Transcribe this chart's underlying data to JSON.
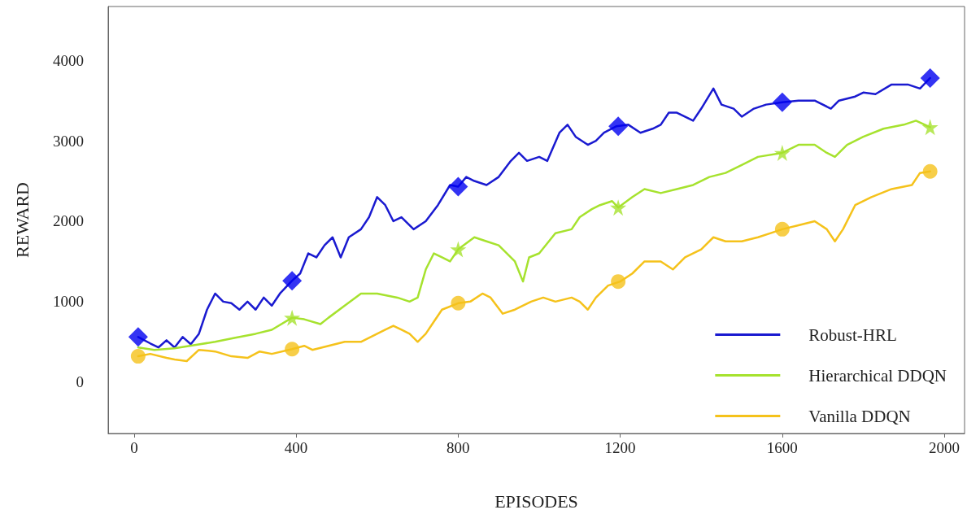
{
  "chart_data": {
    "type": "line",
    "xlabel": "EPISODES",
    "ylabel": "REWARD",
    "xlim": [
      -64,
      2050
    ],
    "ylim": [
      -640,
      4670
    ],
    "xticks": [
      0,
      400,
      800,
      1200,
      1600,
      2000
    ],
    "yticks": [
      0,
      1000,
      2000,
      3000,
      4000
    ],
    "grid": false,
    "legend": "bottom right",
    "line_style": "solid",
    "series": [
      {
        "name": "Robust-HRL",
        "color": "#1a1ad0",
        "x": [
          10,
          40,
          60,
          80,
          100,
          120,
          140,
          160,
          180,
          200,
          220,
          240,
          260,
          280,
          300,
          320,
          340,
          360,
          390,
          410,
          430,
          450,
          470,
          490,
          510,
          530,
          560,
          580,
          600,
          620,
          640,
          660,
          690,
          720,
          750,
          780,
          800,
          820,
          840,
          870,
          900,
          930,
          950,
          970,
          1000,
          1020,
          1050,
          1070,
          1090,
          1120,
          1140,
          1160,
          1190,
          1220,
          1250,
          1280,
          1300,
          1320,
          1340,
          1380,
          1400,
          1430,
          1450,
          1480,
          1500,
          1530,
          1560,
          1600,
          1640,
          1680,
          1720,
          1740,
          1780,
          1800,
          1830,
          1870,
          1910,
          1940,
          1965
        ],
        "values": [
          560,
          480,
          430,
          520,
          430,
          560,
          470,
          600,
          900,
          1100,
          1000,
          980,
          900,
          1000,
          900,
          1050,
          950,
          1100,
          1260,
          1350,
          1600,
          1550,
          1700,
          1800,
          1550,
          1800,
          1900,
          2050,
          2300,
          2200,
          2000,
          2050,
          1900,
          2000,
          2200,
          2450,
          2430,
          2550,
          2500,
          2450,
          2550,
          2750,
          2850,
          2750,
          2800,
          2750,
          3100,
          3200,
          3050,
          2950,
          3000,
          3100,
          3180,
          3200,
          3100,
          3150,
          3200,
          3350,
          3350,
          3250,
          3400,
          3650,
          3450,
          3400,
          3300,
          3400,
          3450,
          3480,
          3500,
          3500,
          3400,
          3500,
          3550,
          3600,
          3580,
          3700,
          3700,
          3650,
          3780
        ]
      },
      {
        "name": "Hierarchical DDQN",
        "color": "#a6e22e",
        "x": [
          10,
          50,
          100,
          150,
          200,
          250,
          300,
          340,
          390,
          420,
          460,
          480,
          520,
          560,
          600,
          650,
          680,
          700,
          720,
          740,
          760,
          780,
          800,
          840,
          870,
          900,
          940,
          960,
          975,
          1000,
          1040,
          1080,
          1100,
          1130,
          1150,
          1180,
          1195,
          1230,
          1260,
          1300,
          1340,
          1380,
          1420,
          1460,
          1500,
          1540,
          1600,
          1640,
          1680,
          1710,
          1730,
          1760,
          1800,
          1850,
          1900,
          1930,
          1965
        ],
        "values": [
          430,
          400,
          420,
          460,
          500,
          550,
          600,
          650,
          800,
          780,
          720,
          800,
          950,
          1100,
          1100,
          1050,
          1000,
          1050,
          1400,
          1600,
          1550,
          1500,
          1650,
          1800,
          1750,
          1700,
          1500,
          1250,
          1550,
          1600,
          1850,
          1900,
          2050,
          2150,
          2200,
          2250,
          2170,
          2300,
          2400,
          2350,
          2400,
          2450,
          2550,
          2600,
          2700,
          2800,
          2850,
          2950,
          2950,
          2850,
          2800,
          2950,
          3050,
          3150,
          3200,
          3250,
          3170
        ]
      },
      {
        "name": "Vanilla DDQN",
        "color": "#f5c21b",
        "x": [
          10,
          40,
          80,
          100,
          130,
          160,
          200,
          240,
          280,
          310,
          340,
          390,
          420,
          440,
          480,
          520,
          560,
          600,
          620,
          640,
          660,
          680,
          700,
          720,
          740,
          760,
          800,
          830,
          860,
          880,
          910,
          940,
          980,
          1010,
          1040,
          1080,
          1100,
          1120,
          1140,
          1170,
          1200,
          1230,
          1260,
          1300,
          1330,
          1360,
          1400,
          1430,
          1460,
          1500,
          1540,
          1570,
          1600,
          1640,
          1680,
          1710,
          1730,
          1750,
          1780,
          1820,
          1870,
          1920,
          1940,
          1965
        ],
        "values": [
          320,
          350,
          300,
          280,
          260,
          400,
          380,
          320,
          300,
          380,
          350,
          410,
          450,
          400,
          450,
          500,
          500,
          600,
          650,
          700,
          650,
          600,
          500,
          600,
          750,
          900,
          980,
          1000,
          1100,
          1050,
          850,
          900,
          1000,
          1050,
          1000,
          1050,
          1000,
          900,
          1050,
          1200,
          1250,
          1350,
          1500,
          1500,
          1400,
          1550,
          1650,
          1800,
          1750,
          1750,
          1800,
          1850,
          1900,
          1950,
          2000,
          1900,
          1750,
          1900,
          2200,
          2300,
          2400,
          2450,
          2600,
          2620
        ]
      },
      {
        "type": "scatter",
        "color": "#0000f0",
        "marker": "diamond",
        "x": [
          10,
          390,
          800,
          1195,
          1600,
          1965
        ],
        "values": [
          560,
          1260,
          2430,
          3180,
          3480,
          3780
        ]
      },
      {
        "type": "scatter",
        "color": "#a6e22e",
        "marker": "star",
        "x": [
          390,
          800,
          1195,
          1600,
          1965
        ],
        "values": [
          800,
          1650,
          2170,
          2850,
          3170
        ]
      },
      {
        "type": "scatter",
        "color": "#f5c21b",
        "marker": "circle",
        "x": [
          10,
          390,
          800,
          1195,
          1600,
          1965
        ],
        "values": [
          320,
          410,
          980,
          1250,
          1900,
          2620
        ]
      }
    ]
  }
}
